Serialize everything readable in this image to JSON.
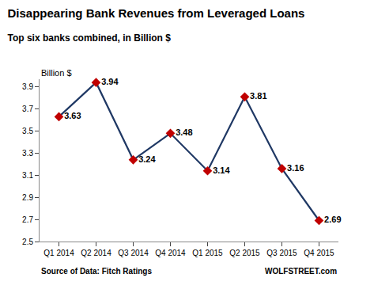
{
  "chart_data": {
    "type": "line",
    "title": "Disappearing Bank Revenues from Leveraged Loans",
    "subtitle": "Top six banks combined, in Billion $",
    "ylabel": "Billion $",
    "annotations": [
      "Source of Data: Fitch Ratings",
      "WOLFSTREET.com"
    ],
    "categories": [
      "Q1 2014",
      "Q2 2014",
      "Q3 2014",
      "Q4 2014",
      "Q1 2015",
      "Q2 2015",
      "Q3 2015",
      "Q4 2015"
    ],
    "values": [
      3.63,
      3.94,
      3.24,
      3.48,
      3.14,
      3.81,
      3.16,
      2.69
    ],
    "color": "#1f3864",
    "colors": [
      "#c00000",
      "#c00000",
      "#c00000",
      "#c00000",
      "#c00000",
      "#c00000",
      "#c00000",
      "#c00000"
    ],
    "marker": "diamond",
    "data_labels": true,
    "ylim": [
      2.5,
      3.97
    ],
    "yticks": [
      2.5,
      2.7,
      2.9,
      3.1,
      3.3,
      3.5,
      3.7,
      3.9
    ],
    "grid": false
  }
}
